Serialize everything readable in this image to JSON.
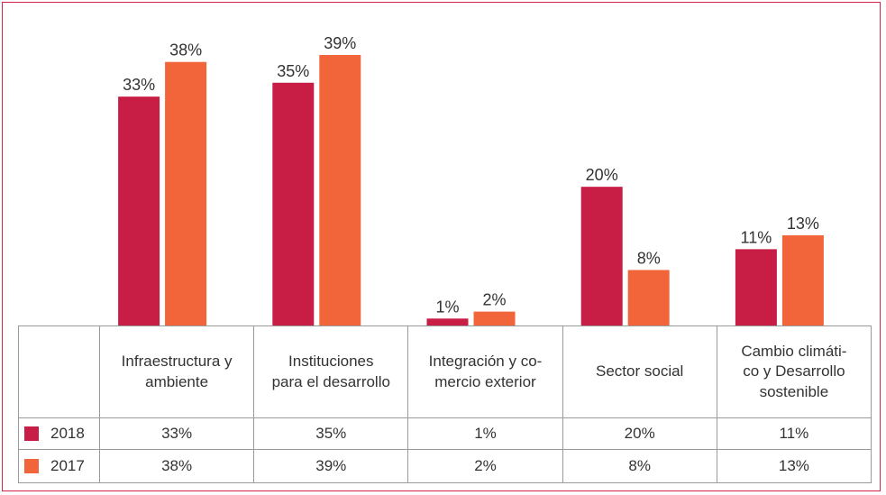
{
  "chart_data": {
    "type": "bar",
    "categories": [
      "Infraestructura y\nambiente",
      "Instituciones\npara el desarrollo",
      "Integración y co-\nmercio exterior",
      "Sector social",
      "Cambio climáti-\nco y Desarrollo\nsostenible"
    ],
    "series": [
      {
        "name": "2018",
        "color": "#c81e45",
        "values": [
          33,
          35,
          1,
          20,
          11
        ],
        "value_labels": [
          "33%",
          "35%",
          "1%",
          "20%",
          "11%"
        ]
      },
      {
        "name": "2017",
        "color": "#f2643a",
        "values": [
          38,
          39,
          2,
          8,
          13
        ],
        "value_labels": [
          "38%",
          "39%",
          "2%",
          "8%",
          "13%"
        ]
      }
    ]
  }
}
